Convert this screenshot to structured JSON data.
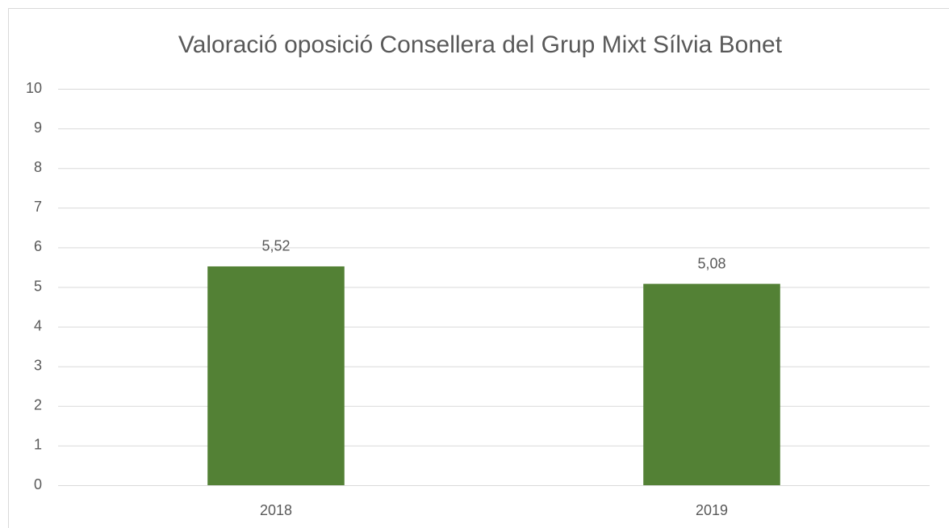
{
  "chart_data": {
    "type": "bar",
    "title": "Valoració oposició Consellera del Grup Mixt Sílvia Bonet",
    "categories": [
      "2018",
      "2019"
    ],
    "values": [
      5.52,
      5.08
    ],
    "value_labels": [
      "5,52",
      "5,08"
    ],
    "color": "#538135",
    "ylim": [
      0,
      10
    ],
    "yticks": [
      0,
      1,
      2,
      3,
      4,
      5,
      6,
      7,
      8,
      9,
      10
    ],
    "grid": true
  }
}
